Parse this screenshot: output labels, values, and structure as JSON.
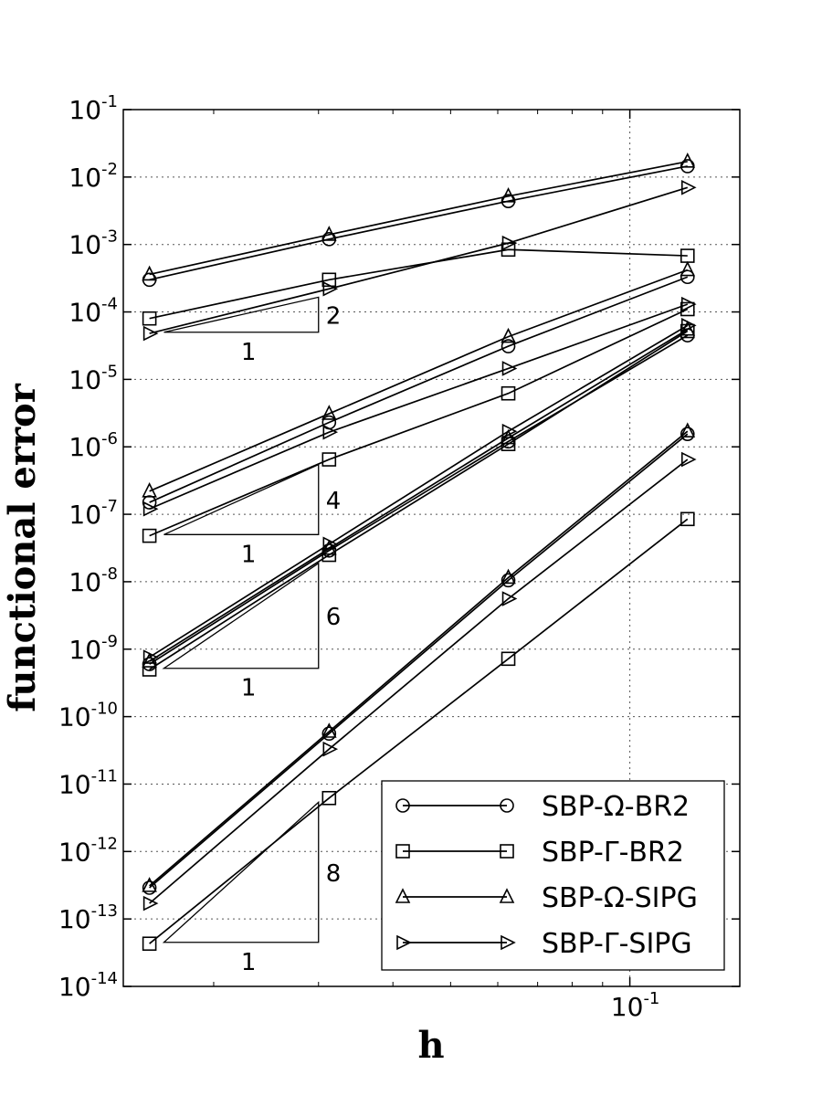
{
  "chart_data": {
    "type": "line",
    "xscale": "log",
    "yscale": "log",
    "xlabel": "h",
    "ylabel": "functional error",
    "xlim": [
      0.0141,
      0.153
    ],
    "ylim": [
      1e-14,
      0.1
    ],
    "x_ticks": [
      {
        "value": 0.1,
        "base": "10",
        "exp": "-1"
      }
    ],
    "y_ticks": [
      {
        "value": 1e-14,
        "base": "10",
        "exp": "-14"
      },
      {
        "value": 1e-13,
        "base": "10",
        "exp": "-13"
      },
      {
        "value": 1e-12,
        "base": "10",
        "exp": "-12"
      },
      {
        "value": 1e-11,
        "base": "10",
        "exp": "-11"
      },
      {
        "value": 1e-10,
        "base": "10",
        "exp": "-10"
      },
      {
        "value": 1e-09,
        "base": "10",
        "exp": "-9"
      },
      {
        "value": 1e-08,
        "base": "10",
        "exp": "-8"
      },
      {
        "value": 1e-07,
        "base": "10",
        "exp": "-7"
      },
      {
        "value": 1e-06,
        "base": "10",
        "exp": "-6"
      },
      {
        "value": 1e-05,
        "base": "10",
        "exp": "-5"
      },
      {
        "value": 0.0001,
        "base": "10",
        "exp": "-4"
      },
      {
        "value": 0.001,
        "base": "10",
        "exp": "-3"
      },
      {
        "value": 0.01,
        "base": "10",
        "exp": "-2"
      },
      {
        "value": 0.1,
        "base": "10",
        "exp": "-1"
      }
    ],
    "grid": true,
    "legend_position": "lower-right",
    "x": [
      0.0156,
      0.03125,
      0.0625,
      0.125
    ],
    "series": [
      {
        "name": "SBP-Ω-BR2",
        "marker": "circle",
        "groups": [
          [
            0.0003,
            0.0012,
            0.0044,
            0.0145
          ],
          [
            1.5e-07,
            2.3e-06,
            3.1e-05,
            0.00033
          ],
          [
            6e-10,
            2.9e-08,
            1.2e-06,
            4.5e-05
          ],
          [
            2.9e-13,
            5.6e-11,
            1.05e-08,
            1.55e-06
          ]
        ]
      },
      {
        "name": "SBP-Γ-BR2",
        "marker": "square",
        "groups": [
          [
            8e-05,
            0.0003,
            0.00084,
            0.00068
          ],
          [
            4.8e-08,
            6.5e-07,
            6.2e-06,
            0.00011
          ],
          [
            5e-10,
            2.5e-08,
            1.1e-06,
            5.2e-05
          ],
          [
            4.3e-14,
            6.2e-12,
            7.2e-10,
            8.5e-08
          ]
        ]
      },
      {
        "name": "SBP-Ω-SIPG",
        "marker": "triangle-up",
        "groups": [
          [
            0.00036,
            0.0014,
            0.0052,
            0.017
          ],
          [
            2.2e-07,
            3.1e-06,
            4.3e-05,
            0.00042
          ],
          [
            6.6e-10,
            3.1e-08,
            1.35e-06,
            5.5e-05
          ],
          [
            3.1e-13,
            6e-11,
            1.15e-08,
            1.7e-06
          ]
        ]
      },
      {
        "name": "SBP-Γ-SIPG",
        "marker": "triangle-right",
        "groups": [
          [
            4.8e-05,
            0.00022,
            0.00105,
            0.007
          ],
          [
            1.2e-07,
            1.65e-06,
            1.45e-05,
            0.00013
          ],
          [
            7.6e-10,
            3.6e-08,
            1.7e-06,
            6.3e-05
          ],
          [
            1.7e-13,
            3.3e-11,
            5.6e-09,
            6.5e-07
          ]
        ]
      }
    ],
    "slope_triangles": [
      {
        "slope": 2,
        "run_label": "1",
        "rise_label": "2",
        "x0": 0.0165,
        "x1": 0.03,
        "y0": 5e-05
      },
      {
        "slope": 4,
        "run_label": "1",
        "rise_label": "4",
        "x0": 0.0165,
        "x1": 0.03,
        "y0": 5e-08
      },
      {
        "slope": 6,
        "run_label": "1",
        "rise_label": "6",
        "x0": 0.0165,
        "x1": 0.03,
        "y0": 5.2e-10
      },
      {
        "slope": 8,
        "run_label": "1",
        "rise_label": "8",
        "x0": 0.0165,
        "x1": 0.03,
        "y0": 4.5e-14
      }
    ]
  }
}
